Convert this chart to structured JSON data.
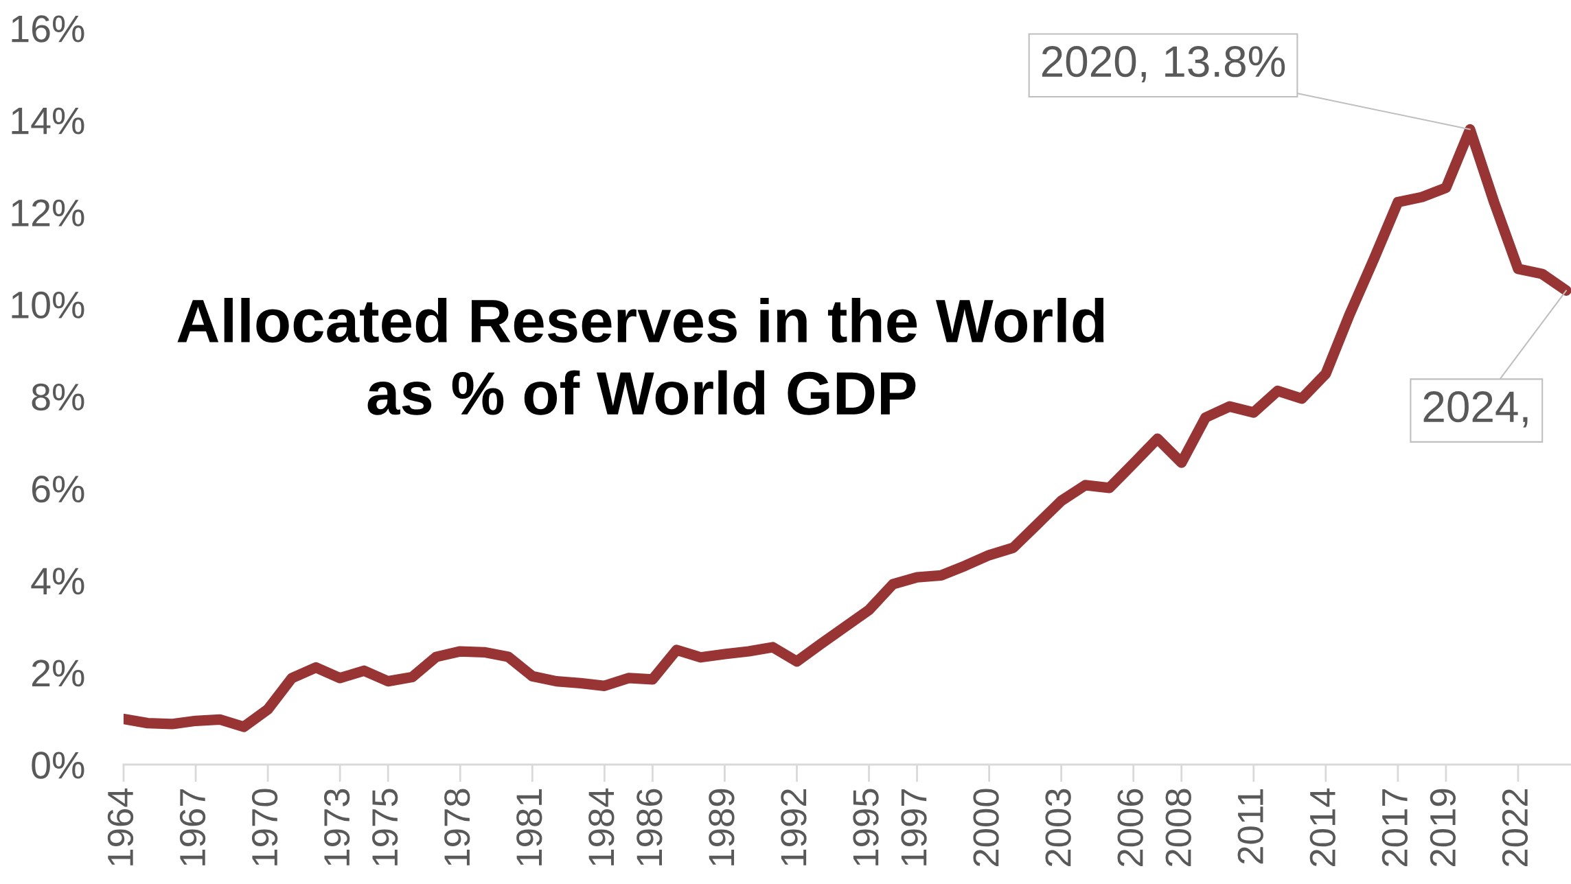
{
  "chart_data": {
    "type": "line",
    "title": "Allocated Reserves in the World\nas % of World GDP",
    "x": [
      1964,
      1965,
      1966,
      1967,
      1968,
      1969,
      1970,
      1971,
      1972,
      1973,
      1974,
      1975,
      1976,
      1977,
      1978,
      1979,
      1980,
      1981,
      1982,
      1983,
      1984,
      1985,
      1986,
      1987,
      1988,
      1989,
      1990,
      1991,
      1992,
      1993,
      1994,
      1995,
      1996,
      1997,
      1998,
      1999,
      2000,
      2001,
      2002,
      2003,
      2004,
      2005,
      2006,
      2007,
      2008,
      2009,
      2010,
      2011,
      2012,
      2013,
      2014,
      2015,
      2016,
      2017,
      2018,
      2019,
      2020,
      2021,
      2022,
      2023,
      2024
    ],
    "series": [
      {
        "color": "#983534",
        "values": [
          0.99,
          0.9,
          0.88,
          0.95,
          0.98,
          0.82,
          1.2,
          1.88,
          2.11,
          1.88,
          2.04,
          1.81,
          1.9,
          2.34,
          2.46,
          2.44,
          2.34,
          1.92,
          1.81,
          1.77,
          1.71,
          1.88,
          1.85,
          2.49,
          2.33,
          2.4,
          2.46,
          2.55,
          2.24,
          2.62,
          2.99,
          3.36,
          3.92,
          4.07,
          4.11,
          4.32,
          4.55,
          4.71,
          5.22,
          5.73,
          6.07,
          6.01,
          6.54,
          7.08,
          6.56,
          7.54,
          7.78,
          7.65,
          8.12,
          7.95,
          8.49,
          9.79,
          10.98,
          12.22,
          12.33,
          12.53,
          13.8,
          12.22,
          10.77,
          10.66,
          10.3
        ]
      }
    ],
    "xlim": [
      1964,
      2024.2
    ],
    "xticks": [
      1964,
      1967,
      1970,
      1973,
      1975,
      1978,
      1981,
      1984,
      1986,
      1989,
      1992,
      1995,
      1997,
      2000,
      2003,
      2006,
      2008,
      2011,
      2014,
      2017,
      2019,
      2022
    ],
    "ylim": [
      0,
      16
    ],
    "yticks": [
      {
        "value": 0,
        "label": "0%"
      },
      {
        "value": 2,
        "label": "2%"
      },
      {
        "value": 4,
        "label": "4%"
      },
      {
        "value": 6,
        "label": "6%"
      },
      {
        "value": 8,
        "label": "8%"
      },
      {
        "value": 10,
        "label": "10%"
      },
      {
        "value": 12,
        "label": "12%"
      },
      {
        "value": 14,
        "label": "14%"
      },
      {
        "value": 16,
        "label": "16%"
      }
    ],
    "grid": false,
    "legend": false,
    "line_style": "solid",
    "annotations": [
      {
        "text": "2020, 13.8%",
        "x": 2020,
        "y": 13.8
      },
      {
        "text": "2024,",
        "x": 2024,
        "y": 10.3
      }
    ]
  }
}
